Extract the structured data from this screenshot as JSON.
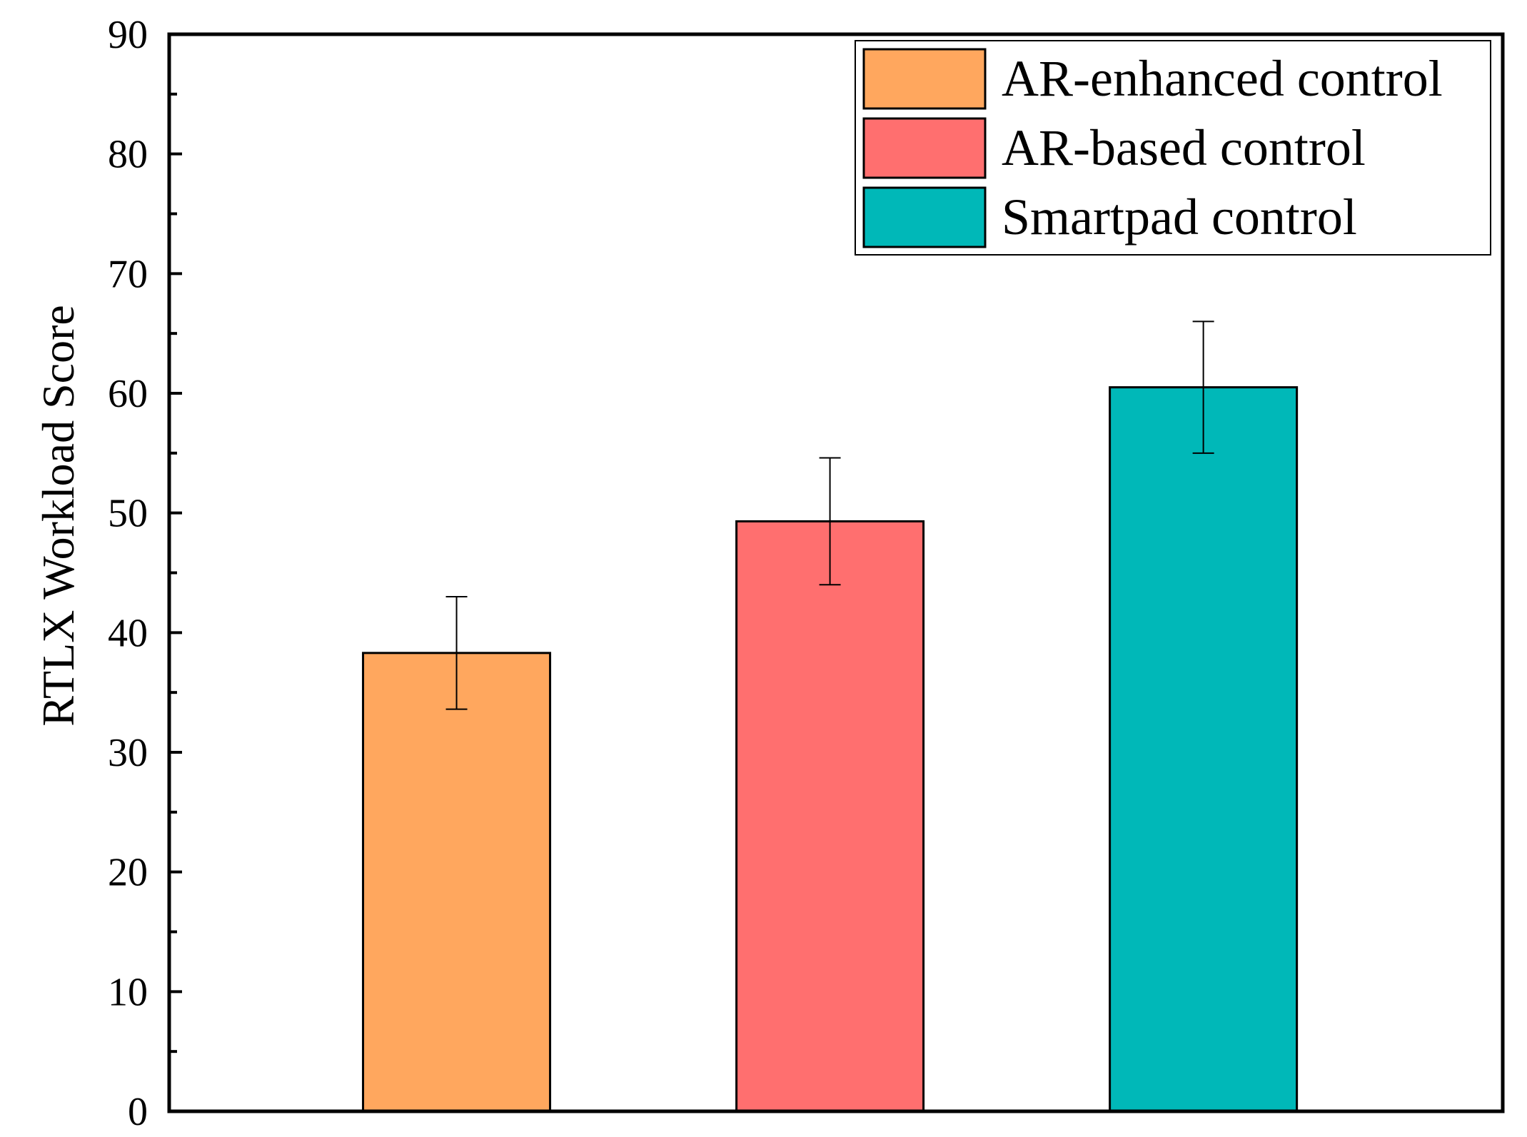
{
  "chart_data": {
    "type": "bar",
    "title": "",
    "xlabel": "",
    "ylabel": "RTLX Workload Score",
    "ylim": [
      0,
      90
    ],
    "yticks": [
      "0",
      "10",
      "20",
      "30",
      "40",
      "50",
      "60",
      "70",
      "80",
      "90"
    ],
    "grid": false,
    "legend_position": "top-right",
    "categories": [
      "AR-enhanced control",
      "AR-based control",
      "Smartpad control"
    ],
    "values": [
      38.3,
      49.3,
      60.5
    ],
    "errors": [
      4.7,
      5.3,
      5.5
    ],
    "colors": [
      "#FFA75E",
      "#FF6F6F",
      "#00B8B8"
    ]
  }
}
